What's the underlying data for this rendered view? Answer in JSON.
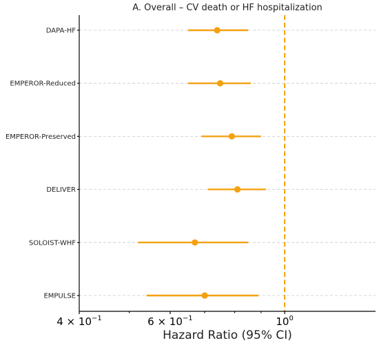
{
  "chart_data": {
    "type": "forest",
    "title": "A. Overall – CV death or HF hospitalization",
    "xlabel": "Hazard Ratio (95% CI)",
    "xscale": "log",
    "xlim": [
      0.4,
      1.5
    ],
    "xticks": [
      {
        "value": 0.4,
        "base": "4 × 10",
        "exp": "−1"
      },
      {
        "value": 0.6,
        "base": "6 × 10",
        "exp": "−1"
      },
      {
        "value": 1.0,
        "base": "10",
        "exp": "0"
      }
    ],
    "reference_line": 1.0,
    "grid": "horizontal dashed",
    "categories": [
      "DAPA-HF",
      "EMPEROR-Reduced",
      "EMPEROR-Preserved",
      "DELIVER",
      "SOLOIST-WHF",
      "EMPULSE"
    ],
    "series": [
      {
        "hr": [
          0.74,
          0.75,
          0.79,
          0.81,
          0.67,
          0.7
        ],
        "lower": [
          0.65,
          0.65,
          0.69,
          0.71,
          0.52,
          0.54
        ],
        "upper": [
          0.85,
          0.86,
          0.9,
          0.92,
          0.85,
          0.89
        ]
      }
    ],
    "colors": {
      "marker": "#f5a00f",
      "reference": "#f5a00f",
      "grid": "#c8c8c8"
    }
  }
}
